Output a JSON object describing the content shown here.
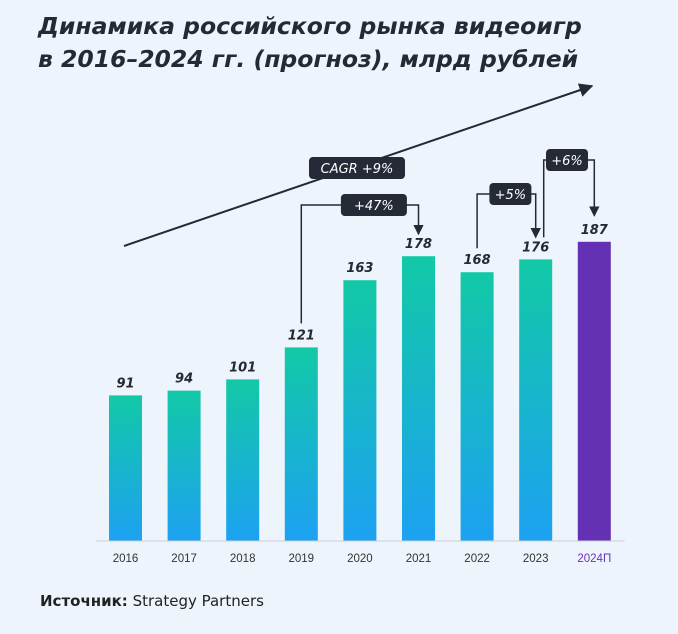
{
  "title_line1": "Динамика российского рынка видеоигр",
  "title_line2": "в 2016–2024 гг. (прогноз), млрд рублей",
  "source_label": "Источник:",
  "source_text": "Strategy Partners",
  "colors": {
    "bar_top": "#12c9a6",
    "bar_bottom": "#1da1f2",
    "forecast_bar": "#6431b4",
    "forecast_label": "#6a35b8",
    "callout_bg": "#252a36",
    "text": "#222a36"
  },
  "chart_data": {
    "type": "bar",
    "title": "Динамика российского рынка видеоигр в 2016–2024 гг. (прогноз), млрд рублей",
    "categories": [
      "2016",
      "2017",
      "2018",
      "2019",
      "2020",
      "2021",
      "2022",
      "2023",
      "2024П"
    ],
    "values": [
      91,
      94,
      101,
      121,
      163,
      178,
      168,
      176,
      187
    ],
    "forecast_category": "2024П",
    "ylim": [
      0,
      200
    ],
    "grid": false,
    "xlabel": "",
    "ylabel": "",
    "annotations": [
      {
        "label": "CAGR +9%",
        "type": "trend-arrow"
      },
      {
        "label": "+47%",
        "from": "2019",
        "to": "2021"
      },
      {
        "label": "+5%",
        "from": "2022",
        "to": "2023"
      },
      {
        "label": "+6%",
        "from": "2023",
        "to": "2024П"
      }
    ]
  }
}
